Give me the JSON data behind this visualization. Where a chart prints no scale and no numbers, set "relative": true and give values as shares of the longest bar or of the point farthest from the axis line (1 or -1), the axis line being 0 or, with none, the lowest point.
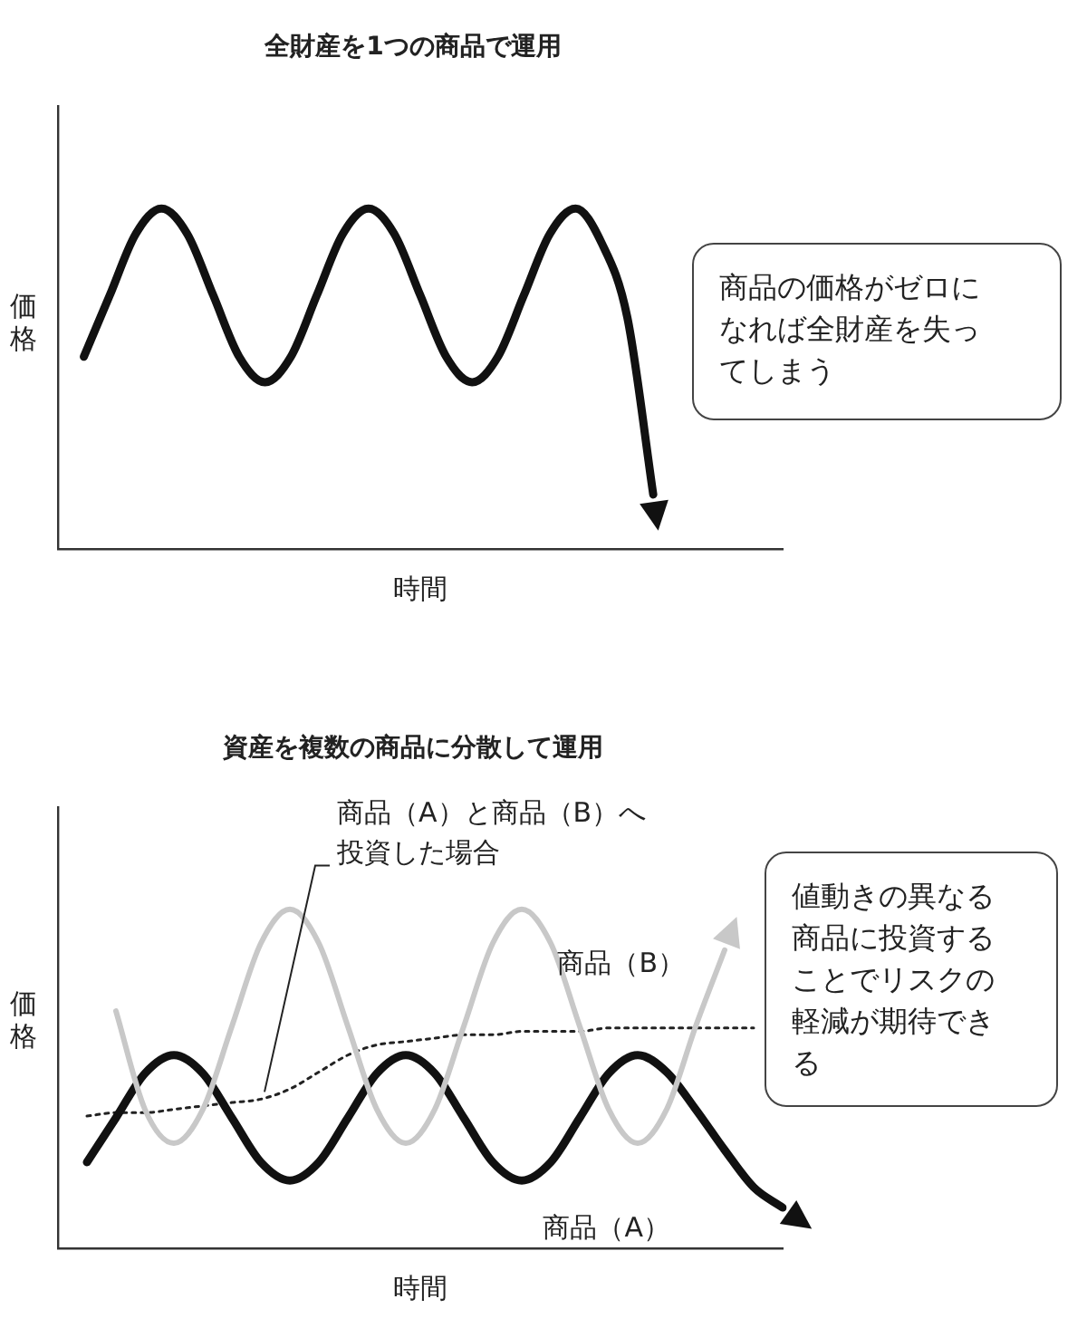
{
  "chart_data": [
    {
      "type": "line",
      "title": "全財産を1つの商品で運用",
      "xlabel": "時間",
      "ylabel": "価格",
      "relative": true,
      "legend": false,
      "marker": "none",
      "categories": [
        null,
        null,
        null,
        null,
        null,
        null,
        null,
        null,
        null,
        null,
        null,
        null,
        null,
        null,
        null,
        null,
        null,
        null,
        null,
        null,
        null,
        null,
        null,
        null,
        null,
        null,
        null,
        null,
        null
      ],
      "series": [
        {
          "color": "#111111",
          "line_style": "solid",
          "values": [
            null,
            0.565,
            0.745,
            0.925,
            1,
            0.925,
            0.745,
            0.565,
            0.49,
            0.565,
            0.745,
            0.925,
            1,
            0.925,
            0.745,
            0.565,
            0.49,
            0.565,
            0.745,
            0.925,
            1,
            0.9,
            0.68,
            0.16,
            null,
            null,
            null,
            null,
            null
          ]
        }
      ],
      "annotations": [
        "商品の価格がゼロになれば全財産を失ってしまう"
      ]
    },
    {
      "type": "line",
      "title": "資産を複数の商品に分散して運用",
      "xlabel": "時間",
      "ylabel": "価格",
      "relative": true,
      "legend": false,
      "marker": "none",
      "categories": [
        null,
        null,
        null,
        null,
        null,
        null,
        null,
        null,
        null,
        null,
        null,
        null,
        null,
        null,
        null,
        null,
        null,
        null,
        null,
        null,
        null,
        null,
        null,
        null,
        null,
        null
      ],
      "series": [
        {
          "name": "商品（B）",
          "color": "#c8c8c8",
          "line_style": "solid",
          "values": [
            null,
            null,
            0.7,
            0.41,
            0.31,
            0.41,
            0.655,
            0.9,
            1,
            0.9,
            0.655,
            0.41,
            0.31,
            0.41,
            0.655,
            0.9,
            1,
            0.9,
            0.655,
            0.41,
            0.31,
            0.41,
            0.655,
            0.88,
            null,
            null
          ]
        },
        {
          "name": "商品（A）",
          "color": "#111111",
          "line_style": "solid",
          "values": [
            null,
            0.254,
            0.385,
            0.516,
            0.57,
            0.516,
            0.385,
            0.254,
            0.2,
            0.254,
            0.385,
            0.516,
            0.57,
            0.516,
            0.385,
            0.254,
            0.2,
            0.254,
            0.385,
            0.516,
            0.57,
            0.52,
            0.41,
            0.29,
            0.18,
            0.12
          ]
        },
        {
          "name": "商品（A）と商品（B）へ投資した場合",
          "color": "#222222",
          "line_style": "dotted",
          "values": [
            null,
            0.39,
            0.4,
            0.4,
            0.41,
            0.42,
            0.43,
            0.44,
            0.47,
            0.52,
            0.57,
            0.6,
            0.61,
            0.62,
            0.63,
            0.63,
            0.64,
            0.64,
            0.64,
            0.65,
            0.65,
            0.65,
            0.65,
            0.65,
            0.65,
            null
          ]
        }
      ],
      "annotations": [
        "値動きの異なる商品に投資することでリスクの軽減が期待できる"
      ]
    }
  ]
}
